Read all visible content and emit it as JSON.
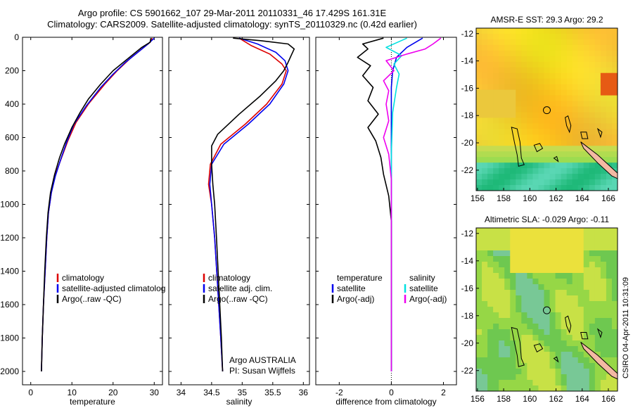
{
  "header": {
    "line1": "Argo profile: CS 5901662_107 29-Mar-2011 20110331_46 17.429S 161.31E",
    "line2": "Climatology: CARS2009. Satellite-adjusted climatology: synTS_20110329.nc (0.42d earlier)"
  },
  "side_stamp": "CSIRO 04-Apr-2011 10:31:09",
  "credit": {
    "line1": "Argo AUSTRALIA",
    "line2": "PI: Susan Wijffels"
  },
  "colors": {
    "climatology": "#dd0000",
    "satellite": "#0000ee",
    "argo": "#000000",
    "satellite_sal": "#00e0e0",
    "argo_sal": "#ee00ee",
    "coast": "#000000",
    "land_fill": "#f3b9a3"
  },
  "chart_data": [
    {
      "type": "line",
      "xlabel": "temperature",
      "xlim": [
        -2,
        32
      ],
      "ylim": [
        2080,
        0
      ],
      "xticks": [
        0,
        10,
        20,
        30
      ],
      "yticks": [
        0,
        200,
        400,
        600,
        800,
        1000,
        1200,
        1400,
        1600,
        1800,
        2000
      ],
      "legend": [
        "climatology",
        "satellite-adjusted climatolog",
        "Argo(..raw -QC)"
      ],
      "series": [
        {
          "name": "climatology",
          "color": "#dd0000",
          "points": [
            [
              29.5,
              5
            ],
            [
              29,
              30
            ],
            [
              27,
              70
            ],
            [
              24,
              130
            ],
            [
              21,
              200
            ],
            [
              18,
              280
            ],
            [
              14,
              400
            ],
            [
              11,
              510
            ],
            [
              9,
              620
            ],
            [
              7.5,
              720
            ],
            [
              6,
              820
            ],
            [
              5,
              930
            ],
            [
              4.3,
              1050
            ],
            [
              3.9,
              1200
            ],
            [
              3.5,
              1400
            ],
            [
              3.1,
              1600
            ],
            [
              2.8,
              1800
            ],
            [
              2.6,
              2000
            ]
          ]
        },
        {
          "name": "satellite-adjusted climatolog",
          "color": "#0000ee",
          "points": [
            [
              30,
              5
            ],
            [
              28.5,
              40
            ],
            [
              26,
              90
            ],
            [
              23,
              150
            ],
            [
              20,
              220
            ],
            [
              17,
              300
            ],
            [
              13.5,
              410
            ],
            [
              10.5,
              520
            ],
            [
              8.7,
              630
            ],
            [
              7.3,
              730
            ],
            [
              6,
              830
            ],
            [
              5,
              930
            ],
            [
              4.3,
              1050
            ],
            [
              3.9,
              1200
            ],
            [
              3.5,
              1400
            ],
            [
              3.1,
              1600
            ],
            [
              2.8,
              1800
            ],
            [
              2.6,
              2000
            ]
          ]
        },
        {
          "name": "Argo(..raw -QC)",
          "color": "#000000",
          "points": [
            [
              29.2,
              5
            ],
            [
              29,
              30
            ],
            [
              27,
              60
            ],
            [
              25,
              100
            ],
            [
              23,
              140
            ],
            [
              20,
              200
            ],
            [
              17,
              280
            ],
            [
              14,
              370
            ],
            [
              12,
              450
            ],
            [
              10,
              540
            ],
            [
              8.2,
              640
            ],
            [
              7,
              720
            ],
            [
              5.8,
              820
            ],
            [
              4.8,
              930
            ],
            [
              4.2,
              1050
            ],
            [
              3.8,
              1200
            ],
            [
              3.4,
              1400
            ],
            [
              3.1,
              1600
            ],
            [
              2.8,
              1800
            ],
            [
              2.6,
              2000
            ]
          ]
        }
      ]
    },
    {
      "type": "line",
      "xlabel": "salinity",
      "xlim": [
        33.8,
        36.1
      ],
      "ylim": [
        2080,
        0
      ],
      "xticks": [
        34,
        34.5,
        35,
        35.5,
        36
      ],
      "yticks": [
        0,
        200,
        400,
        600,
        800,
        1000,
        1200,
        1400,
        1600,
        1800,
        2000
      ],
      "legend": [
        "climatology",
        "satellite adj. clim.",
        "Argo(..raw -QC)"
      ],
      "series": [
        {
          "name": "climatology",
          "color": "#dd0000",
          "points": [
            [
              34.95,
              5
            ],
            [
              35.15,
              50
            ],
            [
              35.45,
              100
            ],
            [
              35.65,
              160
            ],
            [
              35.72,
              200
            ],
            [
              35.65,
              280
            ],
            [
              35.4,
              400
            ],
            [
              35.05,
              520
            ],
            [
              34.65,
              640
            ],
            [
              34.48,
              760
            ],
            [
              34.45,
              880
            ],
            [
              34.5,
              1000
            ],
            [
              34.55,
              1200
            ],
            [
              34.6,
              1500
            ],
            [
              34.65,
              1800
            ],
            [
              34.68,
              2000
            ]
          ]
        },
        {
          "name": "satellite adj. clim.",
          "color": "#0000ee",
          "points": [
            [
              34.95,
              5
            ],
            [
              35.25,
              40
            ],
            [
              35.55,
              90
            ],
            [
              35.7,
              140
            ],
            [
              35.75,
              200
            ],
            [
              35.68,
              280
            ],
            [
              35.45,
              400
            ],
            [
              35.1,
              520
            ],
            [
              34.7,
              640
            ],
            [
              34.5,
              760
            ],
            [
              34.47,
              880
            ],
            [
              34.5,
              1000
            ],
            [
              34.55,
              1200
            ],
            [
              34.6,
              1500
            ],
            [
              34.65,
              1800
            ],
            [
              34.68,
              2000
            ]
          ]
        },
        {
          "name": "Argo(..raw -QC)",
          "color": "#000000",
          "points": [
            [
              34.85,
              5
            ],
            [
              35.3,
              20
            ],
            [
              35.75,
              40
            ],
            [
              35.85,
              70
            ],
            [
              35.8,
              110
            ],
            [
              35.75,
              150
            ],
            [
              35.68,
              200
            ],
            [
              35.55,
              260
            ],
            [
              35.3,
              350
            ],
            [
              34.95,
              460
            ],
            [
              34.6,
              580
            ],
            [
              34.5,
              650
            ],
            [
              34.5,
              760
            ],
            [
              34.52,
              880
            ],
            [
              34.55,
              1000
            ],
            [
              34.58,
              1200
            ],
            [
              34.62,
              1500
            ],
            [
              34.66,
              1800
            ],
            [
              34.68,
              2000
            ]
          ]
        }
      ]
    },
    {
      "type": "line",
      "xlabel": "difference from climatology",
      "xlim": [
        -2.9,
        2.5
      ],
      "ylim": [
        2080,
        0
      ],
      "xticks": [
        -2,
        0,
        2
      ],
      "yticks": [
        0,
        200,
        400,
        600,
        800,
        1000,
        1200,
        1400,
        1600,
        1800,
        2000
      ],
      "legend_left": {
        "title": "temperature",
        "items": [
          "satellite",
          "Argo(-adj)"
        ]
      },
      "legend_right": {
        "title": "salinity",
        "items": [
          "satellite",
          "Argo(-adj)"
        ]
      },
      "series": [
        {
          "name": "temperature satellite",
          "color": "#0000ee",
          "points": [
            [
              1.2,
              5
            ],
            [
              0.6,
              60
            ],
            [
              0.2,
              120
            ],
            [
              0.05,
              200
            ],
            [
              0,
              300
            ],
            [
              0,
              400
            ],
            [
              0,
              600
            ],
            [
              0,
              800
            ],
            [
              0,
              1200
            ],
            [
              0,
              2000
            ]
          ]
        },
        {
          "name": "temperature Argo(-adj)",
          "color": "#000000",
          "points": [
            [
              -0.3,
              5
            ],
            [
              -1.1,
              40
            ],
            [
              -0.9,
              70
            ],
            [
              -1.3,
              120
            ],
            [
              -0.8,
              170
            ],
            [
              -1.1,
              230
            ],
            [
              -0.7,
              300
            ],
            [
              -0.9,
              380
            ],
            [
              -0.5,
              460
            ],
            [
              -0.9,
              540
            ],
            [
              -0.6,
              620
            ],
            [
              -0.4,
              720
            ],
            [
              -0.3,
              820
            ],
            [
              -0.1,
              950
            ],
            [
              0,
              1100
            ],
            [
              0,
              2000
            ]
          ]
        },
        {
          "name": "salinity satellite",
          "color": "#00e0e0",
          "points": [
            [
              0.6,
              5
            ],
            [
              -0.2,
              60
            ],
            [
              0.4,
              110
            ],
            [
              0.1,
              160
            ],
            [
              0.3,
              220
            ],
            [
              0.2,
              300
            ],
            [
              0.05,
              450
            ],
            [
              0,
              700
            ],
            [
              0,
              1000
            ],
            [
              0,
              2000
            ]
          ]
        },
        {
          "name": "salinity Argo(-adj)",
          "color": "#ee00ee",
          "points": [
            [
              1.9,
              5
            ],
            [
              1.6,
              40
            ],
            [
              1.3,
              70
            ],
            [
              0.6,
              100
            ],
            [
              -0.2,
              140
            ],
            [
              0.1,
              200
            ],
            [
              -0.3,
              260
            ],
            [
              -0.1,
              320
            ],
            [
              -0.2,
              400
            ],
            [
              -0.1,
              500
            ],
            [
              -0.3,
              600
            ],
            [
              -0.1,
              700
            ],
            [
              0,
              850
            ],
            [
              0,
              2000
            ]
          ]
        }
      ]
    }
  ],
  "maps": [
    {
      "title": "AMSR-E SST: 29.3 Argo: 29.2",
      "xticks": [
        "156",
        "158",
        "160",
        "162",
        "164",
        "166"
      ],
      "yticks": [
        "-12",
        "-14",
        "-16",
        "-18",
        "-20",
        "-22"
      ],
      "type": "sst"
    },
    {
      "title": "Altimetric SLA: -0.029 Argo: -0.11",
      "xticks": [
        "156",
        "158",
        "160",
        "162",
        "164",
        "166"
      ],
      "yticks": [
        "-12",
        "-14",
        "-16",
        "-18",
        "-20",
        "-22"
      ],
      "type": "sla"
    }
  ]
}
